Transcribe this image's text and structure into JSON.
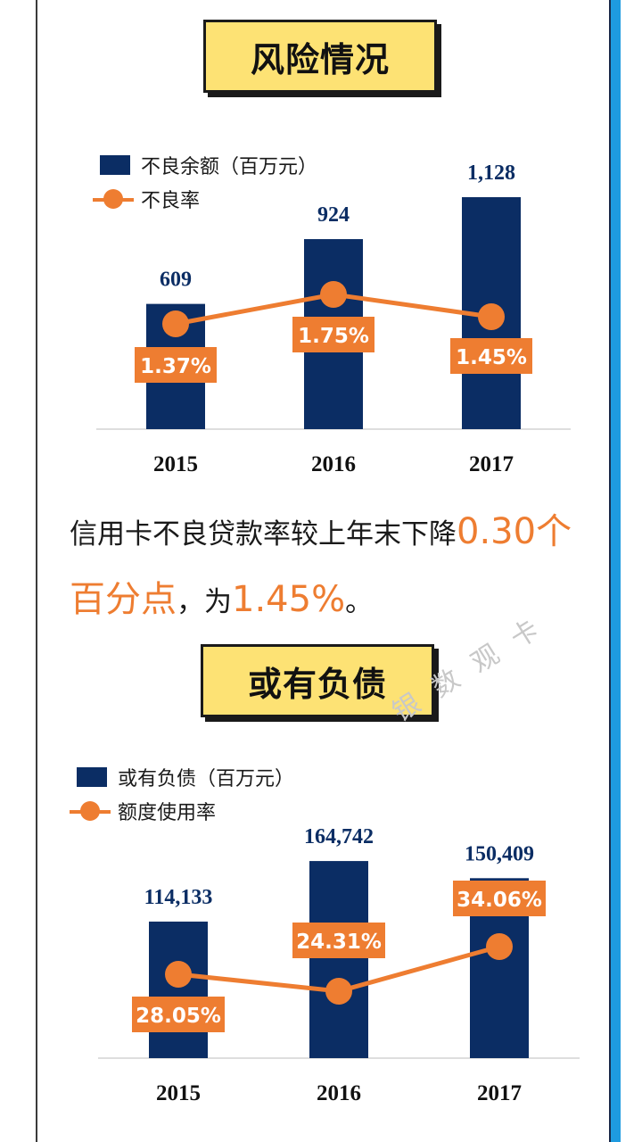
{
  "colors": {
    "bar": "#0b2d64",
    "line": "#ee7d31",
    "title_bg": "#fde274",
    "accent_border": "#1e9be0"
  },
  "section1": {
    "title": "风险情况",
    "legend": {
      "bar": "不良余额（百万元）",
      "line": "不良率"
    }
  },
  "section2": {
    "title": "或有负债",
    "legend": {
      "bar": "或有负债（百万元）",
      "line": "额度使用率"
    }
  },
  "description": {
    "part1": "信用卡不良贷款率较上年末下降",
    "highlight1": "0.30个百分点",
    "part2": "，为",
    "highlight2": "1.45%",
    "part3": "。"
  },
  "watermark": "银数观卡",
  "chart_data": [
    {
      "type": "bar",
      "categories": [
        "2015",
        "2016",
        "2017"
      ],
      "series": [
        {
          "name": "不良余额（百万元）",
          "kind": "bar",
          "values": [
            609,
            924,
            1128
          ],
          "labels": [
            "609",
            "924",
            "1,128"
          ]
        },
        {
          "name": "不良率",
          "kind": "line",
          "values": [
            1.37,
            1.75,
            1.45
          ],
          "labels": [
            "1.37%",
            "1.75%",
            "1.45%"
          ]
        }
      ],
      "grid": false,
      "legend_position": "top-left"
    },
    {
      "type": "bar",
      "categories": [
        "2015",
        "2016",
        "2017"
      ],
      "series": [
        {
          "name": "或有负债（百万元）",
          "kind": "bar",
          "values": [
            114133,
            164742,
            150409
          ],
          "labels": [
            "114,133",
            "164,742",
            "150,409"
          ]
        },
        {
          "name": "额度使用率",
          "kind": "line",
          "values": [
            28.05,
            24.31,
            34.06
          ],
          "labels": [
            "28.05%",
            "24.31%",
            "34.06%"
          ]
        }
      ],
      "grid": false,
      "legend_position": "top-left"
    }
  ]
}
